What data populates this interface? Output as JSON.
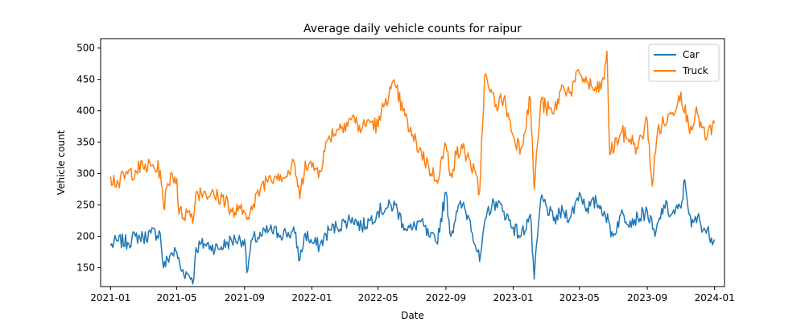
{
  "chart_data": {
    "type": "line",
    "title": "Average daily vehicle counts for raipur",
    "xlabel": "Date",
    "ylabel": "Vehicle count",
    "xlim": [
      "2020-12-14",
      "2024-01-19"
    ],
    "ylim": [
      120,
      515
    ],
    "x_ticks": [
      "2021-01",
      "2021-05",
      "2021-09",
      "2022-01",
      "2022-05",
      "2022-09",
      "2023-01",
      "2023-05",
      "2023-09",
      "2024-01"
    ],
    "y_ticks": [
      150,
      200,
      250,
      300,
      350,
      400,
      450,
      500
    ],
    "legend": {
      "position": "top-right"
    },
    "grid": false,
    "series": [
      {
        "name": "Car",
        "color": "#1f77b4",
        "points": [
          [
            "2021-01-01",
            185
          ],
          [
            "2021-01-15",
            193
          ],
          [
            "2021-02-01",
            190
          ],
          [
            "2021-02-15",
            200
          ],
          [
            "2021-03-01",
            198
          ],
          [
            "2021-03-15",
            205
          ],
          [
            "2021-04-01",
            205
          ],
          [
            "2021-04-07",
            150
          ],
          [
            "2021-04-20",
            172
          ],
          [
            "2021-05-01",
            175
          ],
          [
            "2021-05-08",
            148
          ],
          [
            "2021-05-20",
            140
          ],
          [
            "2021-06-01",
            133
          ],
          [
            "2021-06-05",
            182
          ],
          [
            "2021-06-20",
            188
          ],
          [
            "2021-07-01",
            185
          ],
          [
            "2021-07-15",
            180
          ],
          [
            "2021-08-01",
            190
          ],
          [
            "2021-08-15",
            195
          ],
          [
            "2021-09-01",
            195
          ],
          [
            "2021-09-05",
            142
          ],
          [
            "2021-09-15",
            195
          ],
          [
            "2021-10-01",
            200
          ],
          [
            "2021-10-15",
            210
          ],
          [
            "2021-11-01",
            205
          ],
          [
            "2021-11-15",
            205
          ],
          [
            "2021-12-01",
            205
          ],
          [
            "2021-12-10",
            162
          ],
          [
            "2021-12-20",
            205
          ],
          [
            "2022-01-01",
            190
          ],
          [
            "2022-01-15",
            185
          ],
          [
            "2022-02-01",
            210
          ],
          [
            "2022-02-15",
            215
          ],
          [
            "2022-03-01",
            222
          ],
          [
            "2022-03-15",
            230
          ],
          [
            "2022-04-01",
            215
          ],
          [
            "2022-04-15",
            225
          ],
          [
            "2022-05-01",
            240
          ],
          [
            "2022-05-15",
            245
          ],
          [
            "2022-06-01",
            250
          ],
          [
            "2022-06-15",
            220
          ],
          [
            "2022-07-01",
            210
          ],
          [
            "2022-07-15",
            225
          ],
          [
            "2022-08-01",
            200
          ],
          [
            "2022-08-15",
            190
          ],
          [
            "2022-09-01",
            270
          ],
          [
            "2022-09-10",
            200
          ],
          [
            "2022-09-20",
            240
          ],
          [
            "2022-10-01",
            250
          ],
          [
            "2022-10-15",
            225
          ],
          [
            "2022-11-01",
            160
          ],
          [
            "2022-11-15",
            240
          ],
          [
            "2022-12-01",
            255
          ],
          [
            "2022-12-15",
            240
          ],
          [
            "2023-01-01",
            215
          ],
          [
            "2023-01-15",
            200
          ],
          [
            "2023-02-01",
            235
          ],
          [
            "2023-02-08",
            132
          ],
          [
            "2023-02-20",
            260
          ],
          [
            "2023-03-01",
            250
          ],
          [
            "2023-03-15",
            225
          ],
          [
            "2023-04-01",
            240
          ],
          [
            "2023-04-15",
            230
          ],
          [
            "2023-05-01",
            270
          ],
          [
            "2023-05-15",
            245
          ],
          [
            "2023-06-01",
            255
          ],
          [
            "2023-06-15",
            240
          ],
          [
            "2023-07-01",
            200
          ],
          [
            "2023-07-15",
            235
          ],
          [
            "2023-08-01",
            225
          ],
          [
            "2023-08-15",
            230
          ],
          [
            "2023-09-01",
            240
          ],
          [
            "2023-09-15",
            200
          ],
          [
            "2023-10-01",
            250
          ],
          [
            "2023-10-15",
            235
          ],
          [
            "2023-11-01",
            245
          ],
          [
            "2023-11-08",
            290
          ],
          [
            "2023-11-20",
            215
          ],
          [
            "2023-12-01",
            230
          ],
          [
            "2023-12-15",
            210
          ],
          [
            "2024-01-01",
            195
          ]
        ]
      },
      {
        "name": "Truck",
        "color": "#ff7f0e",
        "points": [
          [
            "2021-01-01",
            295
          ],
          [
            "2021-01-15",
            285
          ],
          [
            "2021-02-01",
            300
          ],
          [
            "2021-02-15",
            305
          ],
          [
            "2021-03-01",
            310
          ],
          [
            "2021-03-15",
            312
          ],
          [
            "2021-04-01",
            305
          ],
          [
            "2021-04-07",
            248
          ],
          [
            "2021-04-20",
            300
          ],
          [
            "2021-05-01",
            292
          ],
          [
            "2021-05-05",
            235
          ],
          [
            "2021-05-20",
            238
          ],
          [
            "2021-06-01",
            233
          ],
          [
            "2021-06-05",
            270
          ],
          [
            "2021-06-20",
            272
          ],
          [
            "2021-07-01",
            265
          ],
          [
            "2021-07-15",
            262
          ],
          [
            "2021-08-01",
            260
          ],
          [
            "2021-08-05",
            235
          ],
          [
            "2021-08-20",
            240
          ],
          [
            "2021-09-01",
            238
          ],
          [
            "2021-09-15",
            242
          ],
          [
            "2021-10-01",
            280
          ],
          [
            "2021-10-15",
            295
          ],
          [
            "2021-11-01",
            300
          ],
          [
            "2021-11-15",
            295
          ],
          [
            "2021-12-01",
            315
          ],
          [
            "2021-12-10",
            260
          ],
          [
            "2021-12-20",
            320
          ],
          [
            "2022-01-01",
            310
          ],
          [
            "2022-01-15",
            305
          ],
          [
            "2022-02-01",
            360
          ],
          [
            "2022-02-15",
            370
          ],
          [
            "2022-03-01",
            380
          ],
          [
            "2022-03-15",
            390
          ],
          [
            "2022-04-01",
            370
          ],
          [
            "2022-04-15",
            385
          ],
          [
            "2022-05-01",
            375
          ],
          [
            "2022-05-15",
            420
          ],
          [
            "2022-06-01",
            440
          ],
          [
            "2022-06-15",
            400
          ],
          [
            "2022-07-01",
            360
          ],
          [
            "2022-07-15",
            340
          ],
          [
            "2022-08-01",
            310
          ],
          [
            "2022-08-15",
            290
          ],
          [
            "2022-09-01",
            345
          ],
          [
            "2022-09-10",
            300
          ],
          [
            "2022-09-20",
            330
          ],
          [
            "2022-10-01",
            340
          ],
          [
            "2022-10-15",
            320
          ],
          [
            "2022-11-01",
            270
          ],
          [
            "2022-11-10",
            455
          ],
          [
            "2022-11-20",
            430
          ],
          [
            "2022-12-01",
            410
          ],
          [
            "2022-12-15",
            420
          ],
          [
            "2023-01-01",
            360
          ],
          [
            "2023-01-15",
            340
          ],
          [
            "2023-02-01",
            420
          ],
          [
            "2023-02-08",
            275
          ],
          [
            "2023-02-20",
            415
          ],
          [
            "2023-03-01",
            405
          ],
          [
            "2023-03-15",
            395
          ],
          [
            "2023-04-01",
            440
          ],
          [
            "2023-04-15",
            430
          ],
          [
            "2023-05-01",
            460
          ],
          [
            "2023-05-15",
            445
          ],
          [
            "2023-06-01",
            430
          ],
          [
            "2023-06-15",
            450
          ],
          [
            "2023-06-20",
            495
          ],
          [
            "2023-06-25",
            330
          ],
          [
            "2023-07-15",
            365
          ],
          [
            "2023-08-01",
            355
          ],
          [
            "2023-08-15",
            340
          ],
          [
            "2023-09-01",
            385
          ],
          [
            "2023-09-10",
            280
          ],
          [
            "2023-09-20",
            370
          ],
          [
            "2023-10-01",
            380
          ],
          [
            "2023-10-15",
            395
          ],
          [
            "2023-11-01",
            430
          ],
          [
            "2023-11-15",
            375
          ],
          [
            "2023-12-01",
            395
          ],
          [
            "2023-12-15",
            355
          ],
          [
            "2024-01-01",
            380
          ]
        ]
      }
    ]
  }
}
